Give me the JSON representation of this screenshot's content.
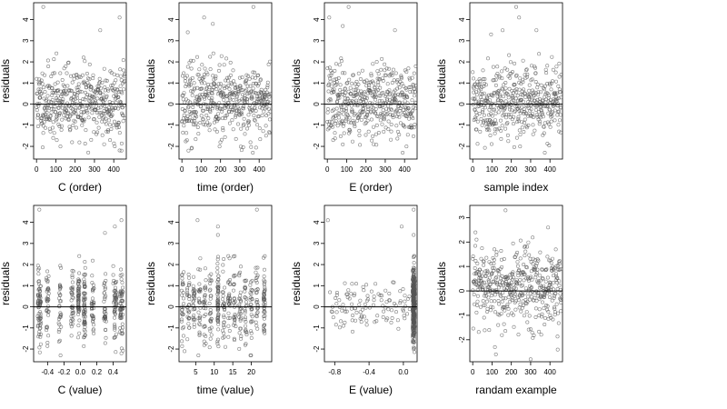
{
  "figure": {
    "ncols": 4,
    "nrows": 2,
    "ylabel": "residuals"
  },
  "chart_data": [
    {
      "type": "scatter",
      "xlabel": "C (order)",
      "ylabel": "residuals",
      "xlim": [
        -15,
        465
      ],
      "ylim": [
        -2.6,
        4.8
      ],
      "xticks": [
        0,
        100,
        200,
        300,
        400
      ],
      "yticks": [
        -2,
        -1,
        0,
        1,
        2,
        3,
        4
      ],
      "hline": 0,
      "mode": "index",
      "n": 460,
      "seed": 11,
      "outliers": [
        [
          35,
          4.6
        ],
        [
          430,
          4.1
        ],
        [
          330,
          3.5
        ],
        [
          105,
          -1.7
        ],
        [
          350,
          -1.9
        ],
        [
          440,
          -2.2
        ]
      ]
    },
    {
      "type": "scatter",
      "xlabel": "time (order)",
      "ylabel": "residuals",
      "xlim": [
        -15,
        465
      ],
      "ylim": [
        -2.6,
        4.8
      ],
      "xticks": [
        0,
        100,
        200,
        300,
        400
      ],
      "yticks": [
        -2,
        -1,
        0,
        1,
        2,
        3,
        4
      ],
      "hline": 0,
      "mode": "index",
      "n": 460,
      "seed": 23,
      "outliers": [
        [
          115,
          4.1
        ],
        [
          370,
          4.6
        ],
        [
          160,
          3.8
        ],
        [
          30,
          3.4
        ],
        [
          50,
          -2.1
        ],
        [
          195,
          -2.0
        ]
      ]
    },
    {
      "type": "scatter",
      "xlabel": "E (order)",
      "ylabel": "residuals",
      "xlim": [
        -15,
        465
      ],
      "ylim": [
        -2.6,
        4.8
      ],
      "xticks": [
        0,
        100,
        200,
        300,
        400
      ],
      "yticks": [
        -2,
        -1,
        0,
        1,
        2,
        3,
        4
      ],
      "hline": 0,
      "mode": "index",
      "n": 460,
      "seed": 37,
      "outliers": [
        [
          10,
          4.1
        ],
        [
          110,
          4.6
        ],
        [
          350,
          3.5
        ],
        [
          80,
          3.7
        ],
        [
          240,
          -1.9
        ],
        [
          410,
          -2.0
        ]
      ]
    },
    {
      "type": "scatter",
      "xlabel": "sample index",
      "ylabel": "residuals",
      "xlim": [
        -15,
        465
      ],
      "ylim": [
        -2.6,
        4.8
      ],
      "xticks": [
        0,
        100,
        200,
        300,
        400
      ],
      "yticks": [
        -2,
        -1,
        0,
        1,
        2,
        3,
        4
      ],
      "hline": 0,
      "mode": "index",
      "n": 460,
      "seed": 41,
      "outliers": [
        [
          225,
          4.6
        ],
        [
          240,
          4.1
        ],
        [
          330,
          3.5
        ],
        [
          155,
          3.5
        ],
        [
          95,
          3.3
        ],
        [
          245,
          -2.0
        ]
      ]
    },
    {
      "type": "scatter",
      "xlabel": "C (value)",
      "ylabel": "residuals",
      "xlim": [
        -0.57,
        0.56
      ],
      "ylim": [
        -2.6,
        4.8
      ],
      "xticks": [
        -0.4,
        -0.2,
        0.0,
        0.2,
        0.4
      ],
      "ytick_labels_hidden_odd": false,
      "yticks": [
        -2,
        -1,
        0,
        1,
        2,
        3,
        4
      ],
      "hline": 0,
      "mode": "columns",
      "seed": 53,
      "columns": [
        {
          "x": -0.5,
          "n": 70,
          "spread": 0.02
        },
        {
          "x": -0.4,
          "n": 35,
          "spread": 0.015
        },
        {
          "x": -0.25,
          "n": 30,
          "spread": 0.015
        },
        {
          "x": -0.1,
          "n": 35,
          "spread": 0.015
        },
        {
          "x": -0.02,
          "n": 55,
          "spread": 0.01
        },
        {
          "x": 0.05,
          "n": 60,
          "spread": 0.01
        },
        {
          "x": 0.15,
          "n": 35,
          "spread": 0.015
        },
        {
          "x": 0.3,
          "n": 35,
          "spread": 0.015
        },
        {
          "x": 0.42,
          "n": 50,
          "spread": 0.02
        },
        {
          "x": 0.5,
          "n": 55,
          "spread": 0.02
        }
      ],
      "outliers": [
        [
          -0.5,
          4.6
        ],
        [
          0.5,
          4.1
        ],
        [
          0.42,
          3.8
        ],
        [
          0.3,
          3.5
        ],
        [
          -0.25,
          -1.6
        ],
        [
          0.5,
          -2.2
        ]
      ]
    },
    {
      "type": "scatter",
      "xlabel": "time (value)",
      "ylabel": "residuals",
      "xlim": [
        0.5,
        25.5
      ],
      "ylim": [
        -2.6,
        4.8
      ],
      "xticks": [
        5,
        10,
        15,
        20
      ],
      "yticks": [
        -2,
        -1,
        0,
        1,
        2,
        3,
        4
      ],
      "hline": 0,
      "mode": "columns",
      "seed": 67,
      "columns": [
        {
          "x": 1.5,
          "n": 28,
          "spread": 0.3
        },
        {
          "x": 3,
          "n": 28,
          "spread": 0.3
        },
        {
          "x": 4.5,
          "n": 28,
          "spread": 0.3
        },
        {
          "x": 6,
          "n": 28,
          "spread": 0.3
        },
        {
          "x": 7.5,
          "n": 28,
          "spread": 0.3
        },
        {
          "x": 9,
          "n": 28,
          "spread": 0.3
        },
        {
          "x": 11,
          "n": 55,
          "spread": 0.15
        },
        {
          "x": 12.5,
          "n": 28,
          "spread": 0.3
        },
        {
          "x": 14,
          "n": 28,
          "spread": 0.3
        },
        {
          "x": 15.5,
          "n": 28,
          "spread": 0.3
        },
        {
          "x": 17,
          "n": 28,
          "spread": 0.3
        },
        {
          "x": 18.5,
          "n": 28,
          "spread": 0.3
        },
        {
          "x": 20,
          "n": 28,
          "spread": 0.3
        },
        {
          "x": 21.5,
          "n": 28,
          "spread": 0.3
        },
        {
          "x": 23.5,
          "n": 45,
          "spread": 0.2
        }
      ],
      "outliers": [
        [
          5.5,
          4.1
        ],
        [
          11,
          3.8
        ],
        [
          21.5,
          4.6
        ],
        [
          11,
          3.4
        ],
        [
          2,
          -2.1
        ],
        [
          13,
          -1.9
        ]
      ]
    },
    {
      "type": "scatter",
      "xlabel": "E (value)",
      "ylabel": "residuals",
      "xlim": [
        -0.92,
        0.16
      ],
      "ylim": [
        -2.6,
        4.8
      ],
      "xticks": [
        -0.8,
        -0.4,
        0.0
      ],
      "yticks": [
        -2,
        -1,
        0,
        1,
        2,
        3,
        4
      ],
      "hline": 0,
      "mode": "skewed",
      "seed": 79,
      "spread_points": {
        "n": 110,
        "xmin": -0.86,
        "xmax": 0.08
      },
      "dense_column": {
        "x": 0.12,
        "n": 320,
        "spread": 0.012
      },
      "outliers": [
        [
          -0.88,
          4.1
        ],
        [
          0.12,
          4.6
        ],
        [
          -0.02,
          3.8
        ],
        [
          0.12,
          3.4
        ],
        [
          -0.7,
          -0.9
        ],
        [
          0.12,
          -2.0
        ]
      ]
    },
    {
      "type": "scatter",
      "xlabel": "randam example",
      "ylabel": "residuals",
      "xlim": [
        -15,
        465
      ],
      "ylim": [
        -2.9,
        3.5
      ],
      "xticks": [
        0,
        100,
        200,
        300,
        400
      ],
      "yticks": [
        -2,
        -1,
        0,
        1,
        2,
        3
      ],
      "hline": 0,
      "mode": "index",
      "n": 460,
      "seed": 97,
      "outliers": [
        [
          170,
          3.3
        ],
        [
          20,
          2.1
        ],
        [
          390,
          2.6
        ],
        [
          120,
          -2.6
        ],
        [
          300,
          -2.8
        ],
        [
          440,
          -2.4
        ]
      ]
    }
  ]
}
